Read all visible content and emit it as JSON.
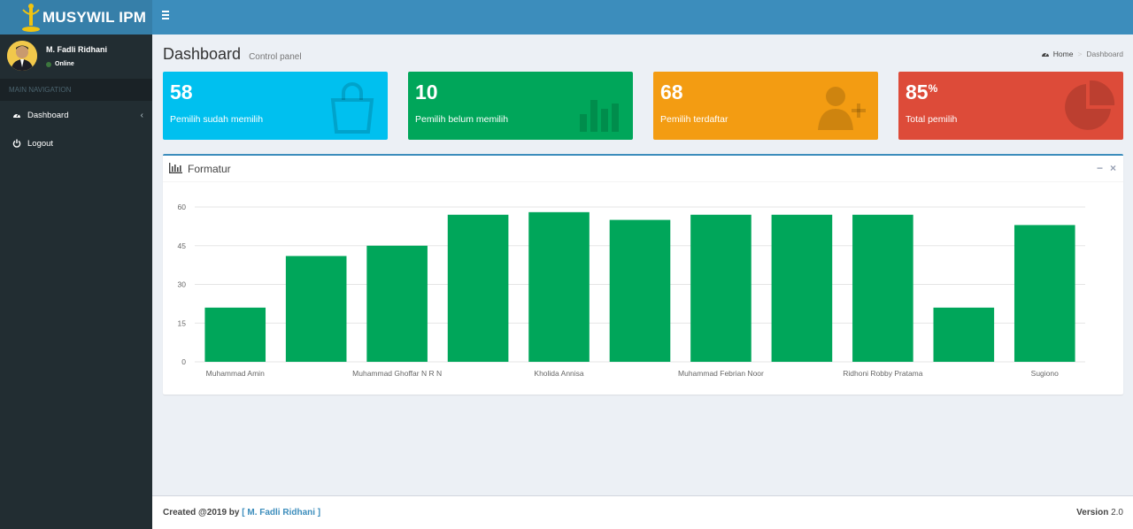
{
  "app": {
    "title": "MUSYWIL IPM"
  },
  "user": {
    "name": "M. Fadli Ridhani",
    "status": "Online"
  },
  "nav": {
    "header": "MAIN NAVIGATION",
    "items": [
      {
        "label": "Dashboard",
        "icon": "dashboard-icon"
      },
      {
        "label": "Logout",
        "icon": "power-icon"
      }
    ]
  },
  "page": {
    "title": "Dashboard",
    "subtitle": "Control panel",
    "breadcrumb": [
      "Home",
      "Dashboard"
    ]
  },
  "tiles": [
    {
      "value": "58",
      "suffix": "",
      "label": "Pemilih sudah memilih",
      "color": "#00c0ef",
      "icon": "shopping-bag-icon"
    },
    {
      "value": "10",
      "suffix": "",
      "label": "Pemilih belum memilih",
      "color": "#00a65a",
      "icon": "bar-chart-icon"
    },
    {
      "value": "68",
      "suffix": "",
      "label": "Pemilih terdaftar",
      "color": "#f39c12",
      "icon": "user-plus-icon"
    },
    {
      "value": "85",
      "suffix": "%",
      "label": "Total pemilih",
      "color": "#dd4b39",
      "icon": "pie-chart-icon"
    }
  ],
  "box": {
    "title": "Formatur",
    "minimize": "−",
    "close": "×"
  },
  "chart_data": {
    "type": "bar",
    "title": "",
    "xlabel": "",
    "ylabel": "",
    "ylim": [
      0,
      60
    ],
    "yticks": [
      0,
      15,
      30,
      45,
      60
    ],
    "categories": [
      "Muhammad Amin",
      "",
      "Muhammad Ghoffar N R N",
      "",
      "Kholida Annisa",
      "",
      "Muhammad Febrian Noor",
      "",
      "Ridhoni Robby Pratama",
      "",
      "Sugiono"
    ],
    "values": [
      21,
      41,
      45,
      57,
      58,
      55,
      57,
      57,
      57,
      21,
      53
    ],
    "color": "#00a65a",
    "grid": true
  },
  "footer": {
    "created": "Created @2019 by ",
    "author": "[ M. Fadli Ridhani ]",
    "version_label": "Version",
    "version": " 2.0"
  }
}
